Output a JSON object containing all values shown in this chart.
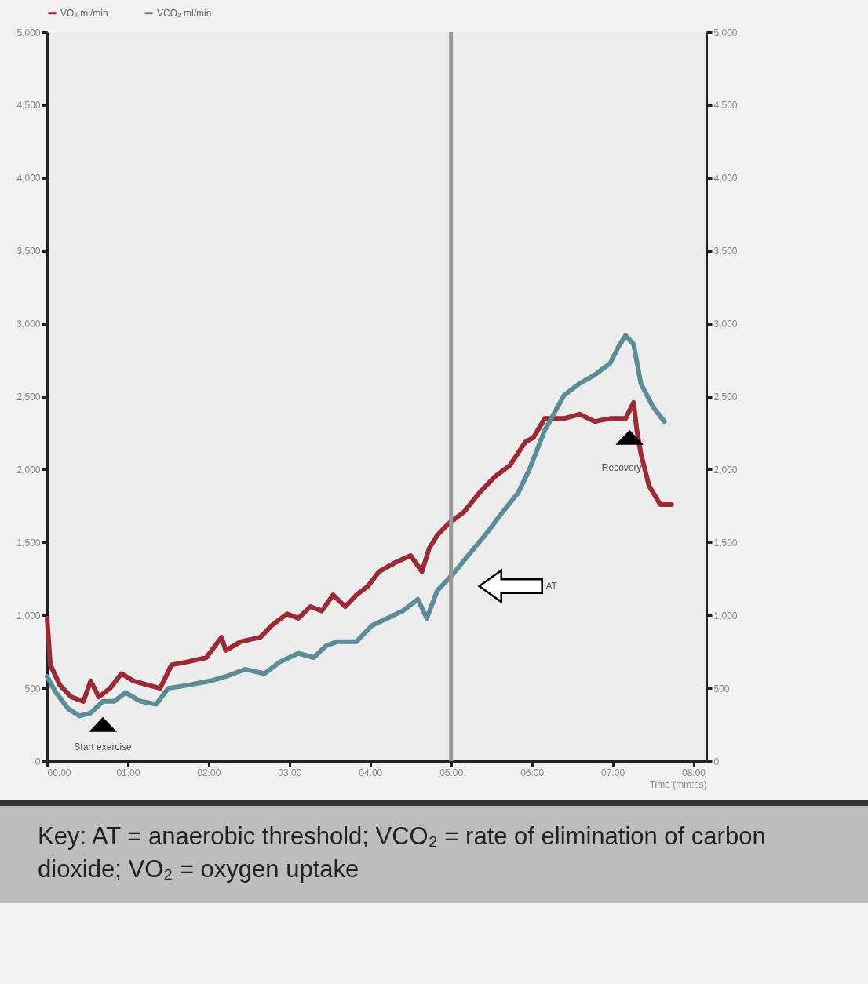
{
  "chart_data": {
    "type": "line",
    "xlabel": "Time (mm:ss)",
    "x": [
      0,
      0.04,
      0.16,
      0.3,
      0.45,
      0.54,
      0.64,
      0.78,
      0.92,
      1.07,
      1.26,
      1.4,
      1.54,
      1.73,
      1.97,
      2.16,
      2.21,
      2.4,
      2.64,
      2.78,
      2.97,
      3.11,
      3.26,
      3.4,
      3.54,
      3.69,
      3.83,
      3.97,
      4.11,
      4.3,
      4.5,
      4.64,
      4.73,
      4.83,
      4.97,
      5.16,
      5.35,
      5.54,
      5.73,
      5.92,
      6.02,
      6.16,
      6.4,
      6.59,
      6.78,
      6.97,
      7.16,
      7.26,
      7.3,
      7.35,
      7.45,
      7.59,
      7.73
    ],
    "series": [
      {
        "name": "VO₂ ml/min",
        "color": "#9b2a35",
        "values": [
          980,
          660,
          520,
          440,
          410,
          550,
          440,
          500,
          600,
          550,
          520,
          500,
          660,
          680,
          710,
          850,
          760,
          820,
          850,
          930,
          1010,
          980,
          1060,
          1030,
          1140,
          1060,
          1140,
          1200,
          1300,
          1360,
          1410,
          1300,
          1460,
          1550,
          1630,
          1710,
          1840,
          1950,
          2030,
          2190,
          2220,
          2350,
          2350,
          2380,
          2330,
          2350,
          2350,
          2460,
          2270,
          2110,
          1890,
          1760,
          1760
        ]
      },
      {
        "name": "VCO₂ ml/min",
        "color": "#5b8e94",
        "x": [
          0,
          0.11,
          0.26,
          0.4,
          0.54,
          0.69,
          0.83,
          0.97,
          1.16,
          1.35,
          1.5,
          1.73,
          2.02,
          2.21,
          2.45,
          2.69,
          2.88,
          3.11,
          3.3,
          3.45,
          3.59,
          3.83,
          4.02,
          4.21,
          4.4,
          4.59,
          4.7,
          4.83,
          5.02,
          5.21,
          5.45,
          5.64,
          5.83,
          5.97,
          6.16,
          6.4,
          6.59,
          6.78,
          6.97,
          7.07,
          7.16,
          7.26,
          7.35,
          7.5,
          7.64
        ],
        "values": [
          580,
          470,
          360,
          310,
          330,
          410,
          410,
          470,
          410,
          390,
          500,
          520,
          550,
          580,
          630,
          600,
          680,
          740,
          710,
          790,
          820,
          820,
          930,
          980,
          1030,
          1110,
          980,
          1170,
          1280,
          1410,
          1570,
          1710,
          1840,
          2000,
          2270,
          2510,
          2590,
          2650,
          2730,
          2840,
          2920,
          2860,
          2590,
          2430,
          2330
        ]
      }
    ],
    "xlim": [
      0,
      8.16
    ],
    "xticks": [
      {
        "value": 0,
        "label": "00:00"
      },
      {
        "value": 1,
        "label": "01:00"
      },
      {
        "value": 2,
        "label": "02:00"
      },
      {
        "value": 3,
        "label": "03:00"
      },
      {
        "value": 4,
        "label": "04:00"
      },
      {
        "value": 5,
        "label": "05:00"
      },
      {
        "value": 6,
        "label": "06:00"
      },
      {
        "value": 7,
        "label": "07:00"
      },
      {
        "value": 8,
        "label": "08:00"
      }
    ],
    "ylim": [
      0,
      5000
    ],
    "yticks": [
      0,
      {
        "value": 500,
        "label": "500"
      },
      {
        "value": 1000,
        "label": "1,000"
      },
      {
        "value": 1500,
        "label": "1,500"
      },
      {
        "value": 2000,
        "label": "2,000"
      },
      {
        "value": 2500,
        "label": "2,500"
      },
      {
        "value": 3000,
        "label": "3,000"
      },
      {
        "value": 3500,
        "label": "3,500"
      },
      {
        "value": 4000,
        "label": "4,000"
      },
      {
        "value": 4500,
        "label": "4,500"
      },
      {
        "value": 5000,
        "label": "5,000"
      }
    ],
    "y2lim": [
      0,
      5000
    ],
    "y2ticks": [
      0,
      {
        "value": 500,
        "label": "500"
      },
      {
        "value": 1000,
        "label": "1,000"
      },
      {
        "value": 1500,
        "label": "1,500"
      },
      {
        "value": 2000,
        "label": "2,000"
      },
      {
        "value": 2500,
        "label": "2,500"
      },
      {
        "value": 3000,
        "label": "3,000"
      },
      {
        "value": 3500,
        "label": "3,500"
      },
      {
        "value": 4000,
        "label": "4,000"
      },
      {
        "value": 4500,
        "label": "4,500"
      },
      {
        "value": 5000,
        "label": "5,000"
      }
    ],
    "ref_lines": [
      {
        "axis": "x",
        "value": 5,
        "color": "#999999"
      }
    ],
    "annotations": [
      "AT",
      {
        "text": "Start exercise",
        "x": 0.69,
        "y": 250
      },
      {
        "text": "Recovery",
        "x": 7.21,
        "y": 2220
      },
      "Key: AT = anaerobic threshold; VCO₂ = rate of elimination of carbon dioxide; VO₂ = oxygen uptake"
    ],
    "grid": false,
    "legend": "top"
  }
}
